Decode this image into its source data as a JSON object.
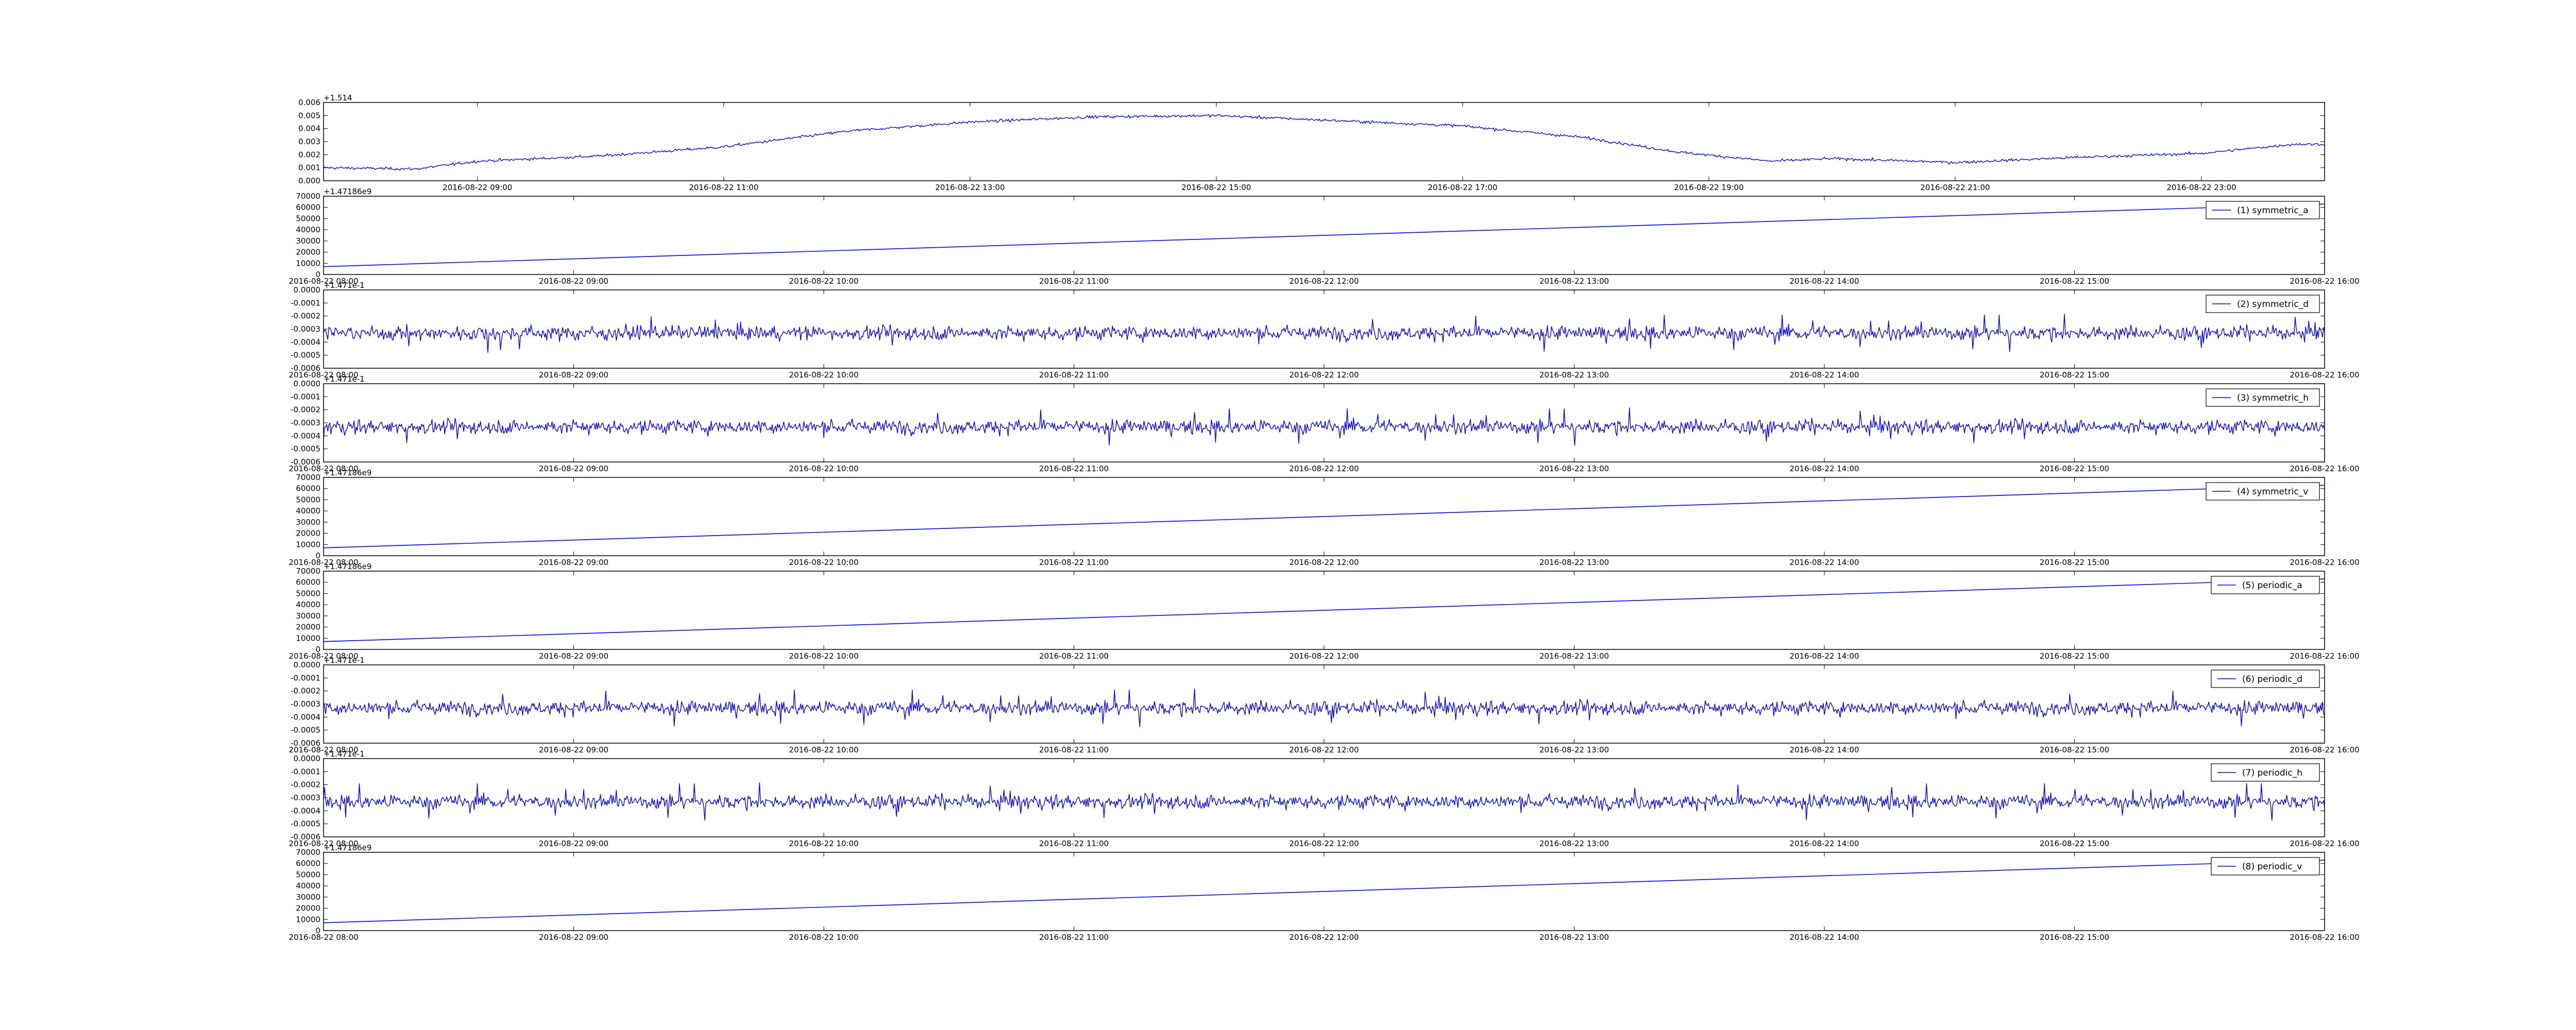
{
  "figure": {
    "background": "#ffffff",
    "line_color": "#0000ff"
  },
  "chart_data": [
    {
      "type": "line",
      "kind": "noisy",
      "offset_label": "+1.514",
      "yticks": [
        "0.000",
        "0.001",
        "0.002",
        "0.003",
        "0.004",
        "0.005",
        "0.006"
      ],
      "ylim": [
        0,
        0.006
      ],
      "xticks": [
        "2016-08-22 09:00",
        "2016-08-22 11:00",
        "2016-08-22 13:00",
        "2016-08-22 15:00",
        "2016-08-22 17:00",
        "2016-08-22 19:00",
        "2016-08-22 21:00",
        "2016-08-22 23:00"
      ],
      "xlim": [
        "2016-08-22 07:45",
        "2016-08-23 00:00"
      ],
      "grid": false,
      "legend": null,
      "series": [
        {
          "x": [
            "2016-08-22 07:45",
            "2016-08-22 08:30",
            "2016-08-22 09:00",
            "2016-08-22 10:00",
            "2016-08-22 11:00",
            "2016-08-22 12:00",
            "2016-08-22 13:00",
            "2016-08-22 14:00",
            "2016-08-22 15:00",
            "2016-08-22 16:00",
            "2016-08-22 17:00",
            "2016-08-22 18:00",
            "2016-08-22 18:45",
            "2016-08-22 19:30",
            "2016-08-22 20:00",
            "2016-08-22 21:00",
            "2016-08-22 22:00",
            "2016-08-22 23:00",
            "2016-08-22 23:45"
          ],
          "values": [
            0.001,
            0.0009,
            0.0015,
            0.0019,
            0.0026,
            0.0038,
            0.0045,
            0.0049,
            0.005,
            0.0046,
            0.0042,
            0.0033,
            0.0022,
            0.0015,
            0.0017,
            0.0014,
            0.0018,
            0.0021,
            0.0028
          ]
        }
      ]
    },
    {
      "type": "line",
      "kind": "linear",
      "offset_label": "+1.47186e9",
      "yticks": [
        "0",
        "10000",
        "20000",
        "30000",
        "40000",
        "50000",
        "60000",
        "70000"
      ],
      "ylim": [
        0,
        70000
      ],
      "xticks": [
        "2016-08-22 08:00",
        "2016-08-22 09:00",
        "2016-08-22 10:00",
        "2016-08-22 11:00",
        "2016-08-22 12:00",
        "2016-08-22 13:00",
        "2016-08-22 14:00",
        "2016-08-22 15:00",
        "2016-08-22 16:00"
      ],
      "xlim": [
        "2016-08-22 08:00",
        "2016-08-22 16:00"
      ],
      "grid": false,
      "legend": "top-right",
      "series": [
        {
          "name": "(1) symmetric_a",
          "x": [
            "2016-08-22 08:00",
            "2016-08-22 16:00"
          ],
          "values": [
            7000,
            63000
          ]
        }
      ]
    },
    {
      "type": "line",
      "kind": "noisy",
      "offset_label": "+1.471e-1",
      "yticks": [
        "-0.0006",
        "-0.0005",
        "-0.0004",
        "-0.0003",
        "-0.0002",
        "-0.0001",
        "0.0000"
      ],
      "ylim": [
        -0.0006,
        0.0
      ],
      "xticks": [
        "2016-08-22 08:00",
        "2016-08-22 09:00",
        "2016-08-22 10:00",
        "2016-08-22 11:00",
        "2016-08-22 12:00",
        "2016-08-22 13:00",
        "2016-08-22 14:00",
        "2016-08-22 15:00",
        "2016-08-22 16:00"
      ],
      "xlim": [
        "2016-08-22 08:00",
        "2016-08-22 16:00"
      ],
      "grid": false,
      "legend": "top-right",
      "series": [
        {
          "name": "(2) symmetric_d",
          "x": [
            "2016-08-22 08:00",
            "2016-08-22 16:00"
          ],
          "values": [
            -0.00033,
            -0.00033
          ],
          "range": [
            -0.00048,
            -0.00015
          ]
        }
      ]
    },
    {
      "type": "line",
      "kind": "noisy",
      "offset_label": "+1.471e-1",
      "yticks": [
        "-0.0006",
        "-0.0005",
        "-0.0004",
        "-0.0003",
        "-0.0002",
        "-0.0001",
        "0.0000"
      ],
      "ylim": [
        -0.0006,
        0.0
      ],
      "xticks": [
        "2016-08-22 08:00",
        "2016-08-22 09:00",
        "2016-08-22 10:00",
        "2016-08-22 11:00",
        "2016-08-22 12:00",
        "2016-08-22 13:00",
        "2016-08-22 14:00",
        "2016-08-22 15:00",
        "2016-08-22 16:00"
      ],
      "xlim": [
        "2016-08-22 08:00",
        "2016-08-22 16:00"
      ],
      "grid": false,
      "legend": "top-right",
      "series": [
        {
          "name": "(3) symmetric_h",
          "x": [
            "2016-08-22 08:00",
            "2016-08-22 16:00"
          ],
          "values": [
            -0.00033,
            -0.00033
          ],
          "range": [
            -0.00048,
            -0.00015
          ]
        }
      ]
    },
    {
      "type": "line",
      "kind": "linear",
      "offset_label": "+1.47186e9",
      "yticks": [
        "0",
        "10000",
        "20000",
        "30000",
        "40000",
        "50000",
        "60000",
        "70000"
      ],
      "ylim": [
        0,
        70000
      ],
      "xticks": [
        "2016-08-22 08:00",
        "2016-08-22 09:00",
        "2016-08-22 10:00",
        "2016-08-22 11:00",
        "2016-08-22 12:00",
        "2016-08-22 13:00",
        "2016-08-22 14:00",
        "2016-08-22 15:00",
        "2016-08-22 16:00"
      ],
      "xlim": [
        "2016-08-22 08:00",
        "2016-08-22 16:00"
      ],
      "grid": false,
      "legend": "top-right",
      "series": [
        {
          "name": "(4) symmetric_v",
          "x": [
            "2016-08-22 08:00",
            "2016-08-22 16:00"
          ],
          "values": [
            7000,
            63000
          ]
        }
      ]
    },
    {
      "type": "line",
      "kind": "linear",
      "offset_label": "+1.47186e9",
      "yticks": [
        "0",
        "10000",
        "20000",
        "30000",
        "40000",
        "50000",
        "60000",
        "70000"
      ],
      "ylim": [
        0,
        70000
      ],
      "xticks": [
        "2016-08-22 08:00",
        "2016-08-22 09:00",
        "2016-08-22 10:00",
        "2016-08-22 11:00",
        "2016-08-22 12:00",
        "2016-08-22 13:00",
        "2016-08-22 14:00",
        "2016-08-22 15:00",
        "2016-08-22 16:00"
      ],
      "xlim": [
        "2016-08-22 08:00",
        "2016-08-22 16:00"
      ],
      "grid": false,
      "legend": "top-right",
      "series": [
        {
          "name": "(5) periodic_a",
          "x": [
            "2016-08-22 08:00",
            "2016-08-22 16:00"
          ],
          "values": [
            7000,
            63000
          ]
        }
      ]
    },
    {
      "type": "line",
      "kind": "noisy",
      "offset_label": "+1.471e-1",
      "yticks": [
        "-0.0006",
        "-0.0005",
        "-0.0004",
        "-0.0003",
        "-0.0002",
        "-0.0001",
        "0.0000"
      ],
      "ylim": [
        -0.0006,
        0.0
      ],
      "xticks": [
        "2016-08-22 08:00",
        "2016-08-22 09:00",
        "2016-08-22 10:00",
        "2016-08-22 11:00",
        "2016-08-22 12:00",
        "2016-08-22 13:00",
        "2016-08-22 14:00",
        "2016-08-22 15:00",
        "2016-08-22 16:00"
      ],
      "xlim": [
        "2016-08-22 08:00",
        "2016-08-22 16:00"
      ],
      "grid": false,
      "legend": "top-right",
      "series": [
        {
          "name": "(6) periodic_d",
          "x": [
            "2016-08-22 08:00",
            "2016-08-22 16:00"
          ],
          "values": [
            -0.00033,
            -0.00033
          ],
          "range": [
            -0.00048,
            -0.00015
          ]
        }
      ]
    },
    {
      "type": "line",
      "kind": "noisy",
      "offset_label": "+1.471e-1",
      "yticks": [
        "-0.0006",
        "-0.0005",
        "-0.0004",
        "-0.0003",
        "-0.0002",
        "-0.0001",
        "0.0000"
      ],
      "ylim": [
        -0.0006,
        0.0
      ],
      "xticks": [
        "2016-08-22 08:00",
        "2016-08-22 09:00",
        "2016-08-22 10:00",
        "2016-08-22 11:00",
        "2016-08-22 12:00",
        "2016-08-22 13:00",
        "2016-08-22 14:00",
        "2016-08-22 15:00",
        "2016-08-22 16:00"
      ],
      "xlim": [
        "2016-08-22 08:00",
        "2016-08-22 16:00"
      ],
      "grid": false,
      "legend": "top-right",
      "series": [
        {
          "name": "(7) periodic_h",
          "x": [
            "2016-08-22 08:00",
            "2016-08-22 16:00"
          ],
          "values": [
            -0.00033,
            -0.00033
          ],
          "range": [
            -0.00048,
            -0.00015
          ]
        }
      ]
    },
    {
      "type": "line",
      "kind": "linear",
      "offset_label": "+1.47186e9",
      "yticks": [
        "0",
        "10000",
        "20000",
        "30000",
        "40000",
        "50000",
        "60000",
        "70000"
      ],
      "ylim": [
        0,
        70000
      ],
      "xticks": [
        "2016-08-22 08:00",
        "2016-08-22 09:00",
        "2016-08-22 10:00",
        "2016-08-22 11:00",
        "2016-08-22 12:00",
        "2016-08-22 13:00",
        "2016-08-22 14:00",
        "2016-08-22 15:00",
        "2016-08-22 16:00"
      ],
      "xlim": [
        "2016-08-22 08:00",
        "2016-08-22 16:00"
      ],
      "grid": false,
      "legend": "top-right",
      "series": [
        {
          "name": "(8) periodic_v",
          "x": [
            "2016-08-22 08:00",
            "2016-08-22 16:00"
          ],
          "values": [
            7000,
            63000
          ]
        }
      ]
    }
  ]
}
